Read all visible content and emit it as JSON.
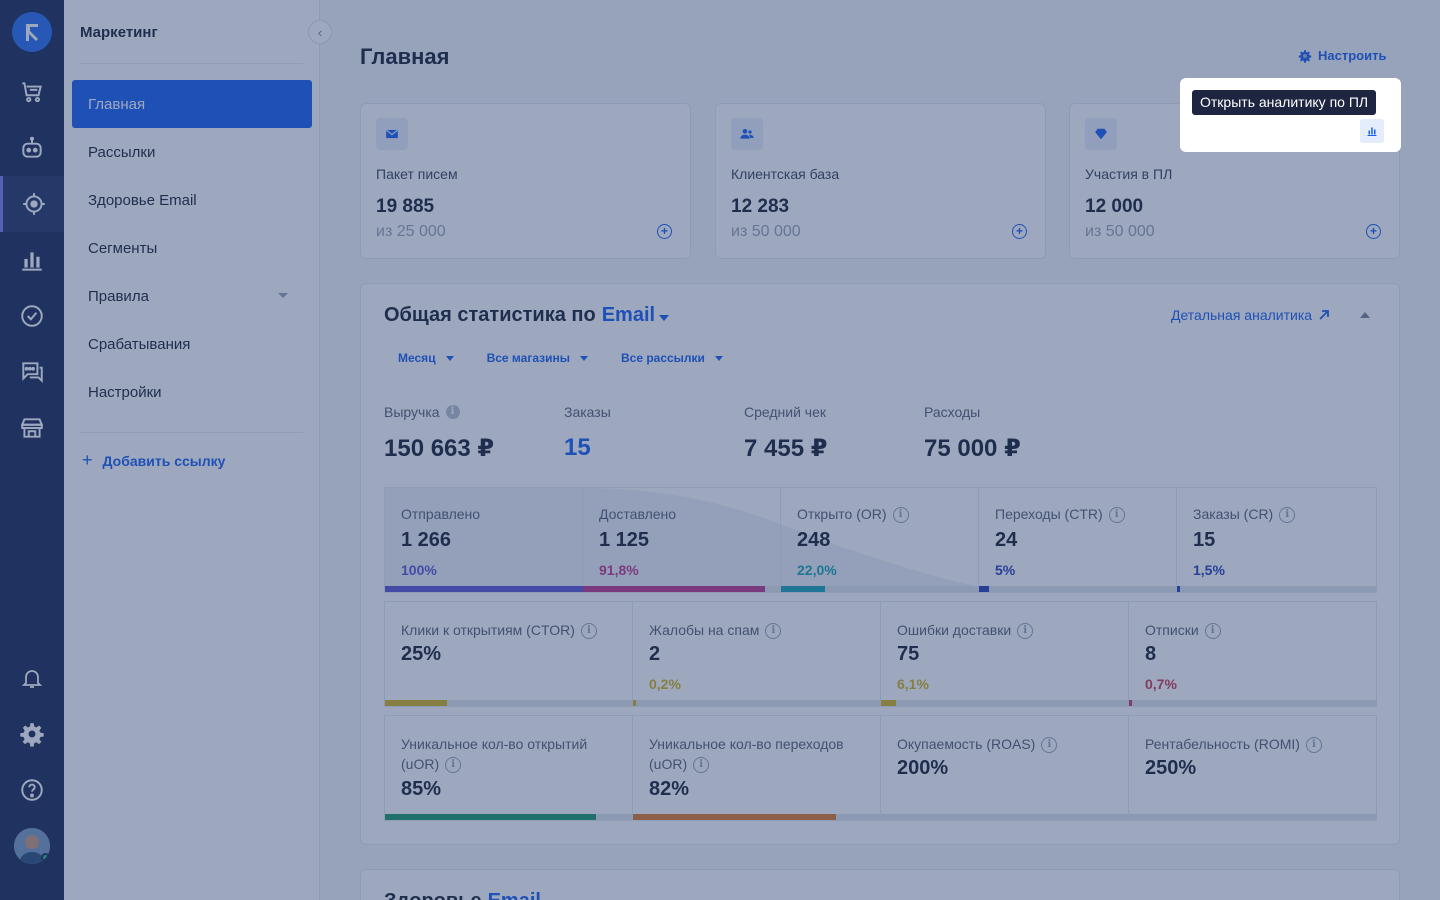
{
  "colors": {
    "accent": "#1a5ff0",
    "rail_bg": "#1d2b55",
    "overlay": "rgba(38,63,110,0.45)",
    "violet": "#5b57d6",
    "magenta": "#c03a8a",
    "teal": "#1aa3b5",
    "yellow": "#d6b21e",
    "red": "#d03c56",
    "green": "#1c9a6a",
    "orange": "#e07a2b"
  },
  "rail": {
    "icons": [
      "logo-icon",
      "cart-icon",
      "bot-icon",
      "target-icon",
      "bar-chart-icon",
      "check-circle-icon",
      "chat-icon",
      "store-icon",
      "bell-icon",
      "gear-icon",
      "help-icon",
      "avatar"
    ]
  },
  "menu": {
    "title": "Маркетинг",
    "items": [
      {
        "label": "Главная",
        "active": true
      },
      {
        "label": "Рассылки"
      },
      {
        "label": "Здоровье Email"
      },
      {
        "label": "Сегменты"
      },
      {
        "label": "Правила",
        "has_dropdown": true
      },
      {
        "label": "Срабатывания"
      },
      {
        "label": "Настройки"
      }
    ],
    "add_link": "Добавить ссылку"
  },
  "header": {
    "title": "Главная",
    "configure": "Настроить"
  },
  "cards": [
    {
      "icon": "envelope-icon",
      "label": "Пакет писем",
      "value": "19 885",
      "sub": "из 25 000"
    },
    {
      "icon": "users-icon",
      "label": "Клиентская база",
      "value": "12 283",
      "sub": "из 50 000"
    },
    {
      "icon": "diamond-icon",
      "label": "Участия в ПЛ",
      "value": "12 000",
      "sub": "из 50 000"
    }
  ],
  "tooltip": "Открыть аналитику по ПЛ",
  "stats": {
    "title_prefix": "Общая статистика по",
    "title_channel": "Email",
    "detail_link": "Детальная аналитика",
    "filters": [
      "Месяц",
      "Все магазины",
      "Все рассылки"
    ],
    "metrics": [
      {
        "label": "Выручка",
        "value": "150 663 ₽",
        "info": true
      },
      {
        "label": "Заказы",
        "value": "15",
        "blue": true
      },
      {
        "label": "Средний чек",
        "value": "7 455 ₽"
      },
      {
        "label": "Расходы",
        "value": "75 000 ₽"
      }
    ],
    "funnel": [
      {
        "label": "Отправлено",
        "value": "1 266",
        "pct": "100%",
        "fraction": 1.0,
        "color": "#5b57d6"
      },
      {
        "label": "Доставлено",
        "value": "1 125",
        "pct": "91,8%",
        "fraction": 0.918,
        "color": "#c03a8a"
      },
      {
        "label": "Открыто (OR)",
        "value": "248",
        "pct": "22,0%",
        "fraction": 0.22,
        "color": "#1aa3b5",
        "info": true
      },
      {
        "label": "Переходы (CTR)",
        "value": "24",
        "pct": "5%",
        "fraction": 0.05,
        "color": "#2740b8",
        "info": true
      },
      {
        "label": "Заказы (CR)",
        "value": "15",
        "pct": "1,5%",
        "fraction": 0.015,
        "color": "#2740b8",
        "info": true
      }
    ],
    "row2": [
      {
        "label": "Клики к открытиям (CTOR)",
        "value": "25%",
        "pct": "",
        "fraction": 0.25,
        "color": "#d6b21e"
      },
      {
        "label": "Жалобы на спам",
        "value": "2",
        "pct": "0,2%",
        "fraction": 0.002,
        "color": "#d6b21e"
      },
      {
        "label": "Ошибки доставки",
        "value": "75",
        "pct": "6,1%",
        "fraction": 0.061,
        "color": "#d6b21e"
      },
      {
        "label": "Отписки",
        "value": "8",
        "pct": "0,7%",
        "fraction": 0.007,
        "color": "#d03c56"
      }
    ],
    "row3": [
      {
        "label": "Уникальное кол-во открытий (uOR)",
        "value": "85%",
        "fraction": 0.85,
        "color": "#1c9a6a"
      },
      {
        "label": "Уникальное кол-во переходов  (uOR)",
        "value": "82%",
        "fraction": 0.82,
        "color": "#e07a2b"
      },
      {
        "label": "Окупаемость (ROAS)",
        "value": "200%",
        "fraction": 0,
        "color": "#1c9a6a"
      },
      {
        "label": "Рентабельность (ROMI)",
        "value": "250%",
        "fraction": 0,
        "color": "#1c9a6a"
      }
    ]
  },
  "health": {
    "title_prefix": "Здоровье",
    "title_channel": "Email"
  }
}
